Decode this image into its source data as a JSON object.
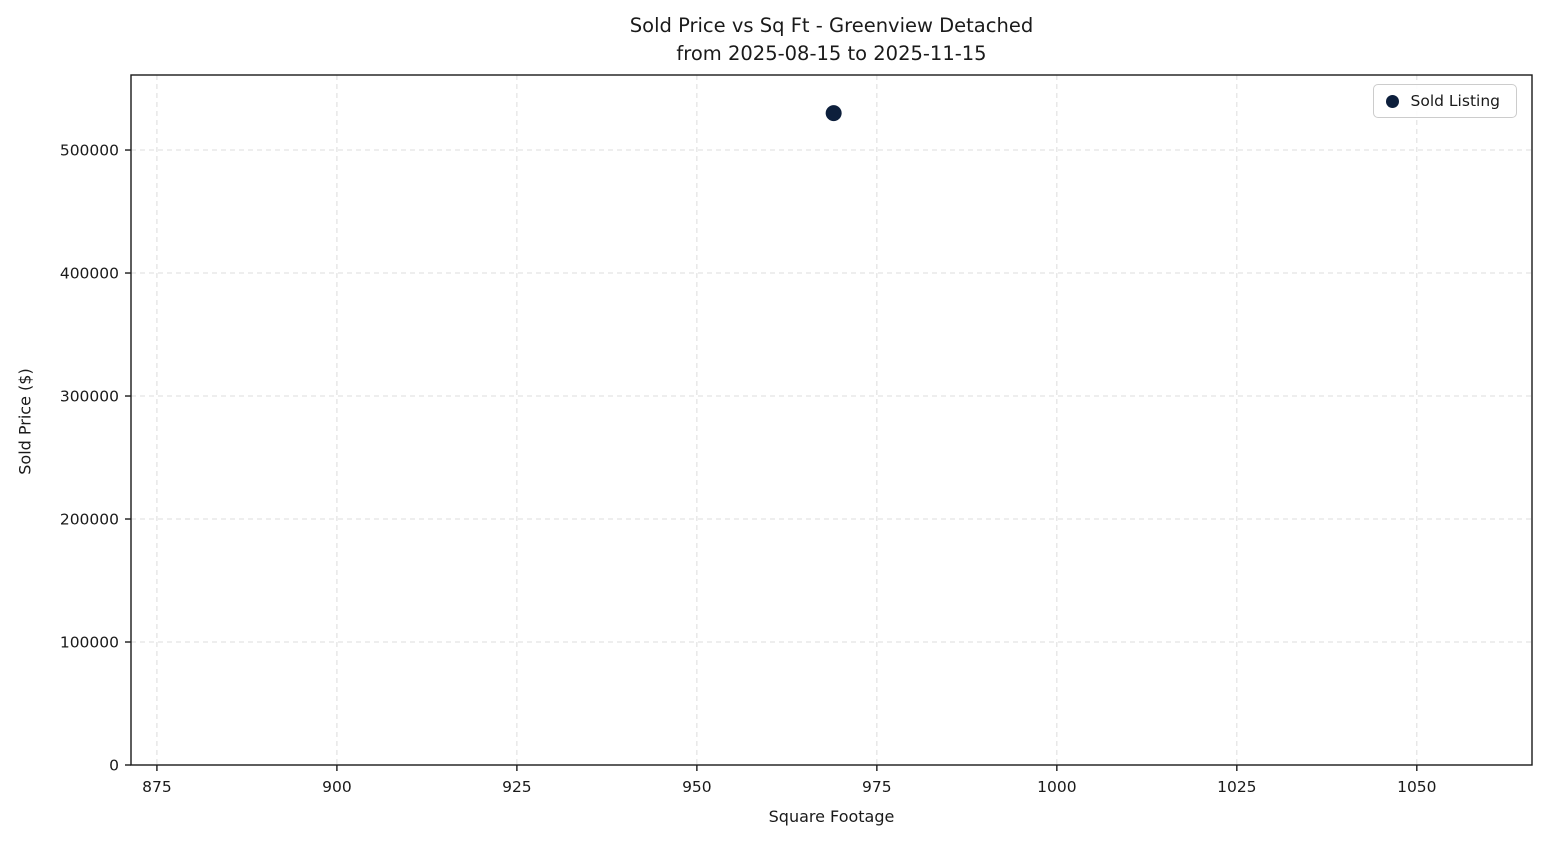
{
  "chart_data": {
    "type": "scatter",
    "title": "Sold Price vs Sq Ft - Greenview Detached",
    "subtitle": "from 2025-08-15 to 2025-11-15",
    "xlabel": "Square Footage",
    "ylabel": "Sold Price ($)",
    "xticks": [
      875,
      900,
      925,
      950,
      975,
      1000,
      1025,
      1050
    ],
    "yticks": [
      0,
      100000,
      200000,
      300000,
      400000,
      500000
    ],
    "xlim": [
      871.4,
      1066
    ],
    "ylim": [
      0,
      561000
    ],
    "grid": true,
    "legend_position": "upper right",
    "series": [
      {
        "name": "Sold Listing",
        "marker_color": "#0d1f3c",
        "points": [
          {
            "x": 969,
            "y": 530000
          }
        ]
      }
    ]
  },
  "legend": {
    "label": "Sold Listing"
  },
  "colors": {
    "marker": "#0d1f3c",
    "grid": "#dcdcdc",
    "spine": "#1a1a1a",
    "text": "#1a1a1a"
  }
}
